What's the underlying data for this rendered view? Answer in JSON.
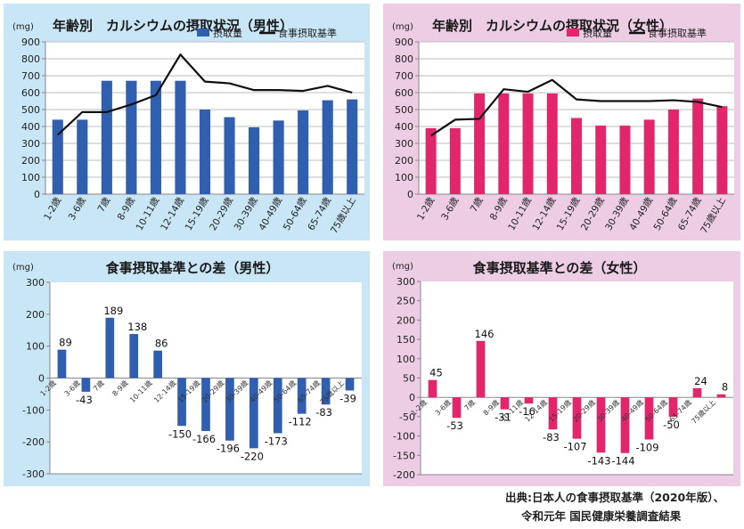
{
  "source": {
    "line1": "出典:日本人の食事摂取基準（2020年版）、",
    "line2": "令和元年 国民健康栄養調査結果"
  },
  "colors": {
    "male_panel_bg": "#c9e6f6",
    "female_panel_bg": "#eccde3",
    "male_bar": "#2f5fae",
    "female_bar": "#e3266c",
    "standard_line": "#111111"
  },
  "chart_data": [
    {
      "type": "bar",
      "title": "年齢別　カルシウムの摂取状況（男性）",
      "unit": "(mg)",
      "categories": [
        "1-2歳",
        "3-6歳",
        "7歳",
        "8-9歳",
        "10-11歳",
        "12-14歳",
        "15-19歳",
        "20-29歳",
        "30-39歳",
        "40-49歳",
        "50-64歳",
        "65-74歳",
        "75歳以上"
      ],
      "series": [
        {
          "name": "摂取量",
          "kind": "bar",
          "values": [
            440,
            440,
            670,
            670,
            670,
            670,
            500,
            455,
            395,
            435,
            495,
            555,
            560
          ]
        },
        {
          "name": "食事摂取基準",
          "kind": "line",
          "values": [
            350,
            485,
            485,
            530,
            585,
            825,
            665,
            655,
            615,
            615,
            610,
            640,
            600
          ]
        }
      ],
      "ylim": [
        0,
        900
      ],
      "yticks": [
        0,
        100,
        200,
        300,
        400,
        500,
        600,
        700,
        800,
        900
      ],
      "legend_position": "top-right",
      "grid": true
    },
    {
      "type": "bar",
      "title": "年齢別　カルシウムの摂取状況（女性）",
      "unit": "(mg)",
      "categories": [
        "1-2歳",
        "3-6歳",
        "7歳",
        "8-9歳",
        "10-11歳",
        "12-14歳",
        "15-19歳",
        "20-29歳",
        "30-39歳",
        "40-49歳",
        "50-64歳",
        "65-74歳",
        "75歳以上"
      ],
      "series": [
        {
          "name": "摂取量",
          "kind": "bar",
          "values": [
            390,
            390,
            595,
            595,
            595,
            595,
            450,
            405,
            405,
            440,
            500,
            565,
            520
          ]
        },
        {
          "name": "食事摂取基準",
          "kind": "line",
          "values": [
            345,
            440,
            445,
            620,
            605,
            675,
            560,
            550,
            550,
            550,
            555,
            545,
            515
          ]
        }
      ],
      "ylim": [
        0,
        900
      ],
      "yticks": [
        0,
        100,
        200,
        300,
        400,
        500,
        600,
        700,
        800,
        900
      ],
      "legend_position": "top-right",
      "grid": true
    },
    {
      "type": "bar",
      "title": "食事摂取基準との差（男性）",
      "unit": "(mg)",
      "categories": [
        "1-2歳",
        "3-6歳",
        "7歳",
        "8-9歳",
        "10-11歳",
        "12-14歳",
        "15-19歳",
        "20-29歳",
        "30-39歳",
        "40-49歳",
        "50-64歳",
        "65-74歳",
        "75歳以上"
      ],
      "values": [
        89,
        -43,
        189,
        138,
        86,
        -150,
        -166,
        -196,
        -220,
        -173,
        -112,
        -83,
        -39
      ],
      "data_labels": [
        "89",
        "-43",
        "189",
        "138",
        "86",
        "-150",
        "-166",
        "-196",
        "-220",
        "-173",
        "-112",
        "-83",
        "-39"
      ],
      "ylim": [
        -300,
        300
      ],
      "yticks": [
        300,
        200,
        100,
        0,
        -100,
        -200,
        -300
      ],
      "grid": false
    },
    {
      "type": "bar",
      "title": "食事摂取基準との差（女性）",
      "unit": "(mg)",
      "categories": [
        "1-2歳",
        "3-6歳",
        "7歳",
        "8-9歳",
        "10-11歳",
        "12-14歳",
        "15-19歳",
        "20-29歳",
        "30-39歳",
        "40-49歳",
        "50-64歳",
        "65-74歳",
        "75歳以上"
      ],
      "values": [
        45,
        -53,
        146,
        -31,
        -16,
        -83,
        -107,
        -143,
        -144,
        -109,
        -50,
        24,
        8
      ],
      "data_labels": [
        "45",
        "-53",
        "146",
        "-31",
        "-16",
        "-83",
        "-107",
        "-143",
        "-144",
        "-109",
        "-50",
        "24",
        "8"
      ],
      "ylim": [
        -200,
        300
      ],
      "yticks": [
        300,
        250,
        200,
        150,
        100,
        50,
        0,
        -50,
        -100,
        -150,
        -200
      ],
      "grid": false
    }
  ]
}
